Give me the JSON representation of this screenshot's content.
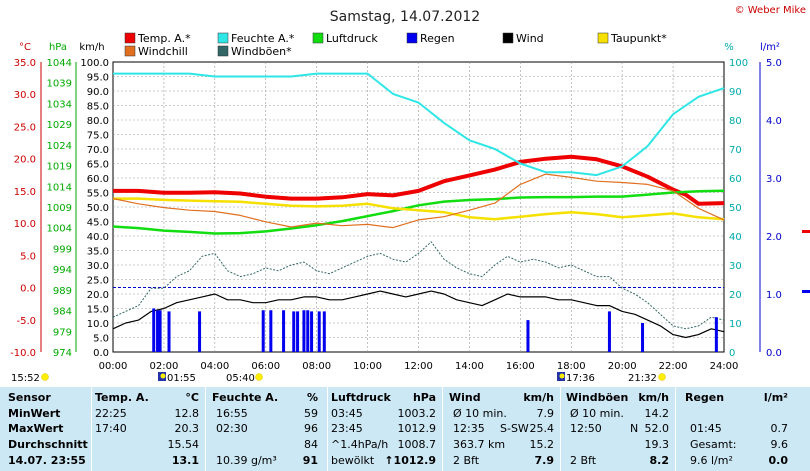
{
  "title": "Samstag, 14.07.2012",
  "copyright": "© Weber Mike",
  "legend": [
    {
      "label": "Temp. A.*",
      "color": "#ee0000"
    },
    {
      "label": "Feuchte A.*",
      "color": "#2ee6e6"
    },
    {
      "label": "Luftdruck",
      "color": "#11dd11"
    },
    {
      "label": "Regen",
      "color": "#0000ee"
    },
    {
      "label": "Wind",
      "color": "#000000"
    },
    {
      "label": "Taupunkt*",
      "color": "#f5e000"
    },
    {
      "label": "Windchill",
      "color": "#e07020"
    },
    {
      "label": "Windböen*",
      "color": "#336666"
    }
  ],
  "axis_units": {
    "temp": "°C",
    "pressure": "hPa",
    "wind": "km/h",
    "humidity": "%",
    "rain": "l/m²"
  },
  "sun": {
    "sunrise": "05:40",
    "sunset": "21:32"
  },
  "moon": {
    "rise": "15:52",
    "set": "01:55",
    "event2": "17:36"
  },
  "chart_data": {
    "type": "line",
    "xlabel": "",
    "x_ticks": [
      "00:00",
      "02:00",
      "04:00",
      "06:00",
      "08:00",
      "10:00",
      "12:00",
      "14:00",
      "16:00",
      "18:00",
      "20:00",
      "22:00",
      "24:00"
    ],
    "axes": {
      "temp": {
        "unit": "°C",
        "range": [
          -10,
          35
        ],
        "ticks": [
          "35.0",
          "30.0",
          "25.0",
          "20.0",
          "15.0",
          "10.0",
          "5.0",
          "0.0",
          "-5.0",
          "-10.0"
        ]
      },
      "pressure": {
        "unit": "hPa",
        "range": [
          974,
          1044
        ],
        "ticks": [
          "1044",
          "1039",
          "1034",
          "1029",
          "1024",
          "1019",
          "1014",
          "1009",
          "1004",
          "999",
          "994",
          "989",
          "984",
          "979",
          "974"
        ]
      },
      "wind": {
        "unit": "km/h",
        "range": [
          0,
          100
        ],
        "ticks": [
          "100.0",
          "95.0",
          "90.0",
          "85.0",
          "80.0",
          "75.0",
          "70.0",
          "65.0",
          "60.0",
          "55.0",
          "50.0",
          "45.0",
          "40.0",
          "35.0",
          "30.0",
          "25.0",
          "20.0",
          "15.0",
          "10.0",
          "5.0",
          "0.0"
        ]
      },
      "humidity": {
        "unit": "%",
        "range": [
          0,
          100
        ],
        "ticks": [
          "100",
          "90",
          "80",
          "70",
          "60",
          "50",
          "40",
          "30",
          "20",
          "10",
          "0"
        ]
      },
      "rain": {
        "unit": "l/m²",
        "range": [
          0,
          5
        ],
        "ticks": [
          "5.0",
          "4.0",
          "3.0",
          "2.0",
          "1.0",
          "0.0"
        ]
      }
    },
    "series": [
      {
        "name": "Temp. A.*",
        "axis": "temp",
        "color": "#ee0000",
        "x": [
          0,
          1,
          2,
          3,
          4,
          5,
          6,
          7,
          8,
          9,
          10,
          11,
          12,
          13,
          14,
          15,
          16,
          17,
          18,
          19,
          20,
          21,
          22,
          22.5,
          23,
          24
        ],
        "y": [
          15.0,
          15.0,
          14.7,
          14.7,
          14.8,
          14.6,
          14.1,
          13.8,
          13.8,
          14.0,
          14.5,
          14.3,
          15.0,
          16.5,
          17.4,
          18.3,
          19.5,
          20.0,
          20.3,
          19.9,
          18.8,
          17.2,
          15.2,
          14.4,
          13.0,
          13.1
        ]
      },
      {
        "name": "Feuchte A.*",
        "axis": "humidity",
        "color": "#2ee6e6",
        "x": [
          0,
          1,
          2,
          3,
          4,
          5,
          6,
          7,
          8,
          9,
          10,
          11,
          12,
          13,
          14,
          15,
          16,
          17,
          18,
          19,
          20,
          21,
          22,
          23,
          24
        ],
        "y": [
          96,
          96,
          96,
          96,
          95,
          95,
          95,
          95,
          96,
          96,
          96,
          89,
          86,
          79,
          73,
          70,
          65,
          62,
          62,
          61,
          64,
          71,
          82,
          88,
          91
        ]
      },
      {
        "name": "Luftdruck",
        "axis": "pressure",
        "color": "#11dd11",
        "x": [
          0,
          1,
          2,
          3,
          4,
          5,
          6,
          7,
          8,
          9,
          10,
          11,
          12,
          13,
          14,
          15,
          16,
          17,
          18,
          19,
          20,
          21,
          22,
          23,
          24
        ],
        "y": [
          1004.3,
          1003.9,
          1003.3,
          1003.0,
          1002.6,
          1002.7,
          1003.1,
          1003.8,
          1004.6,
          1005.6,
          1006.8,
          1008.0,
          1009.4,
          1010.3,
          1010.7,
          1010.9,
          1011.3,
          1011.4,
          1011.4,
          1011.5,
          1011.5,
          1012.0,
          1012.5,
          1012.8,
          1012.9
        ]
      },
      {
        "name": "Taupunkt*",
        "axis": "temp",
        "color": "#f5e000",
        "x": [
          0,
          1,
          2,
          3,
          4,
          5,
          6,
          7,
          8,
          9,
          10,
          11,
          12,
          13,
          14,
          15,
          16,
          17,
          18,
          19,
          20,
          21,
          22,
          23,
          24
        ],
        "y": [
          13.8,
          13.8,
          13.6,
          13.5,
          13.4,
          13.3,
          13.0,
          12.7,
          12.6,
          12.7,
          13.0,
          12.3,
          12.0,
          11.7,
          10.9,
          10.6,
          11.0,
          11.4,
          11.7,
          11.4,
          10.9,
          11.2,
          11.5,
          10.9,
          10.6
        ]
      },
      {
        "name": "Windchill",
        "axis": "temp",
        "color": "#e07020",
        "x": [
          0,
          1,
          2,
          3,
          4,
          5,
          6,
          7,
          8,
          9,
          10,
          11,
          12,
          13,
          14,
          15,
          16,
          17,
          18,
          19,
          20,
          21,
          22,
          23,
          24
        ],
        "y": [
          13.8,
          13.0,
          12.4,
          12.0,
          11.8,
          11.2,
          10.2,
          9.4,
          10.0,
          9.6,
          9.8,
          9.3,
          10.5,
          11.0,
          12.0,
          13.1,
          16.0,
          17.6,
          17.1,
          16.5,
          16.3,
          16.0,
          15.0,
          12.3,
          10.5
        ]
      },
      {
        "name": "Wind",
        "axis": "wind",
        "color": "#000000",
        "x": [
          0,
          0.5,
          1,
          1.5,
          2,
          2.5,
          3,
          3.5,
          4,
          4.5,
          5,
          5.5,
          6,
          6.5,
          7,
          7.5,
          8,
          8.5,
          9,
          9.5,
          10,
          10.5,
          11,
          11.5,
          12,
          12.5,
          13,
          13.5,
          14,
          14.5,
          15,
          15.5,
          16,
          16.5,
          17,
          17.5,
          18,
          18.5,
          19,
          19.5,
          20,
          20.5,
          21,
          21.5,
          22,
          22.5,
          23,
          23.5,
          24
        ],
        "y": [
          8,
          10,
          11,
          14,
          15,
          17,
          18,
          19,
          20,
          18,
          18,
          17,
          17,
          18,
          18,
          19,
          19,
          18,
          18,
          19,
          20,
          21,
          20,
          19,
          20,
          21,
          20,
          18,
          17,
          16,
          18,
          20,
          19,
          19,
          19,
          18,
          18,
          17,
          16,
          16,
          14,
          13,
          11,
          9,
          6,
          5,
          6,
          8,
          7
        ]
      },
      {
        "name": "Windböen*",
        "axis": "wind",
        "color": "#336666",
        "x": [
          0,
          0.5,
          1,
          1.5,
          2,
          2.5,
          3,
          3.5,
          4,
          4.5,
          5,
          5.5,
          6,
          6.5,
          7,
          7.5,
          8,
          8.5,
          9,
          9.5,
          10,
          10.5,
          11,
          11.5,
          12,
          12.5,
          13,
          13.5,
          14,
          14.5,
          15,
          15.5,
          16,
          16.5,
          17,
          17.5,
          18,
          18.5,
          19,
          19.5,
          20,
          20.5,
          21,
          21.5,
          22,
          22.5,
          23,
          23.5,
          24
        ],
        "y": [
          12,
          14,
          16,
          22,
          22,
          26,
          28,
          33,
          34,
          28,
          26,
          27,
          29,
          28,
          30,
          31,
          28,
          27,
          29,
          31,
          33,
          34,
          32,
          31,
          34,
          38,
          32,
          29,
          27,
          26,
          30,
          33,
          31,
          32,
          31,
          29,
          30,
          28,
          26,
          26,
          22,
          20,
          17,
          13,
          9,
          8,
          9,
          12,
          11
        ]
      },
      {
        "name": "Regen",
        "axis": "rain",
        "color": "#0000ee",
        "type": "bar",
        "x": [
          1.6,
          1.75,
          1.85,
          2.2,
          3.4,
          5.9,
          6.2,
          6.7,
          7.1,
          7.25,
          7.5,
          7.65,
          7.8,
          8.1,
          8.3,
          16.3,
          19.5,
          20.8,
          23.7
        ],
        "y": [
          0.75,
          0.72,
          0.72,
          0.7,
          0.7,
          0.72,
          0.72,
          0.72,
          0.7,
          0.7,
          0.72,
          0.72,
          0.7,
          0.7,
          0.7,
          0.55,
          0.7,
          0.5,
          0.6
        ]
      }
    ]
  },
  "table": {
    "header": [
      "Sensor",
      "Temp. A.",
      "°C",
      "Feuchte A.",
      "%",
      "Luftdruck",
      "hPa",
      "Wind",
      "km/h",
      "Windböen",
      "km/h",
      "Regen",
      "l/m²"
    ],
    "rows": [
      {
        "label": "MinWert",
        "t_time": "22:25",
        "t_val": "12.8",
        "h_time": "16:55",
        "h_val": "59",
        "p_time": "03:45",
        "p_val": "1003.2",
        "w_a": "Ø 10 min.",
        "w_b": "",
        "w_val": "7.9",
        "g_a": "Ø 10 min.",
        "g_b": "",
        "g_val": "14.2",
        "r_a": "",
        "r_b": ""
      },
      {
        "label": "MaxWert",
        "t_time": "17:40",
        "t_val": "20.3",
        "h_time": "02:30",
        "h_val": "96",
        "p_time": "23:45",
        "p_val": "1012.9",
        "w_a": "12:35",
        "w_b": "S-SW",
        "w_val": "25.4",
        "g_a": "12:50",
        "g_b": "N",
        "g_val": "52.0",
        "r_a": "01:45",
        "r_b": "0.7"
      },
      {
        "label": "Durchschnitt",
        "t_time": "",
        "t_val": "15.54",
        "h_time": "",
        "h_val": "84",
        "p_time": "^1.4hPa/h",
        "p_val": "1008.7",
        "w_a": "363.7 km",
        "w_b": "",
        "w_val": "15.2",
        "g_a": "",
        "g_b": "",
        "g_val": "19.3",
        "r_a": "Gesamt:",
        "r_b": "9.6"
      },
      {
        "label": "14.07. 23:55",
        "t_time": "",
        "t_val": "13.1",
        "h_time": "10.39 g/m³",
        "h_val": "91",
        "p_time": "bewölkt",
        "p_val": "↑1012.9",
        "w_a": "2 Bft",
        "w_b": "",
        "w_val": "7.9",
        "g_a": "2 Bft",
        "g_b": "",
        "g_val": "8.2",
        "r_a": "9.6 l/m²",
        "r_b": "0.0"
      }
    ]
  }
}
